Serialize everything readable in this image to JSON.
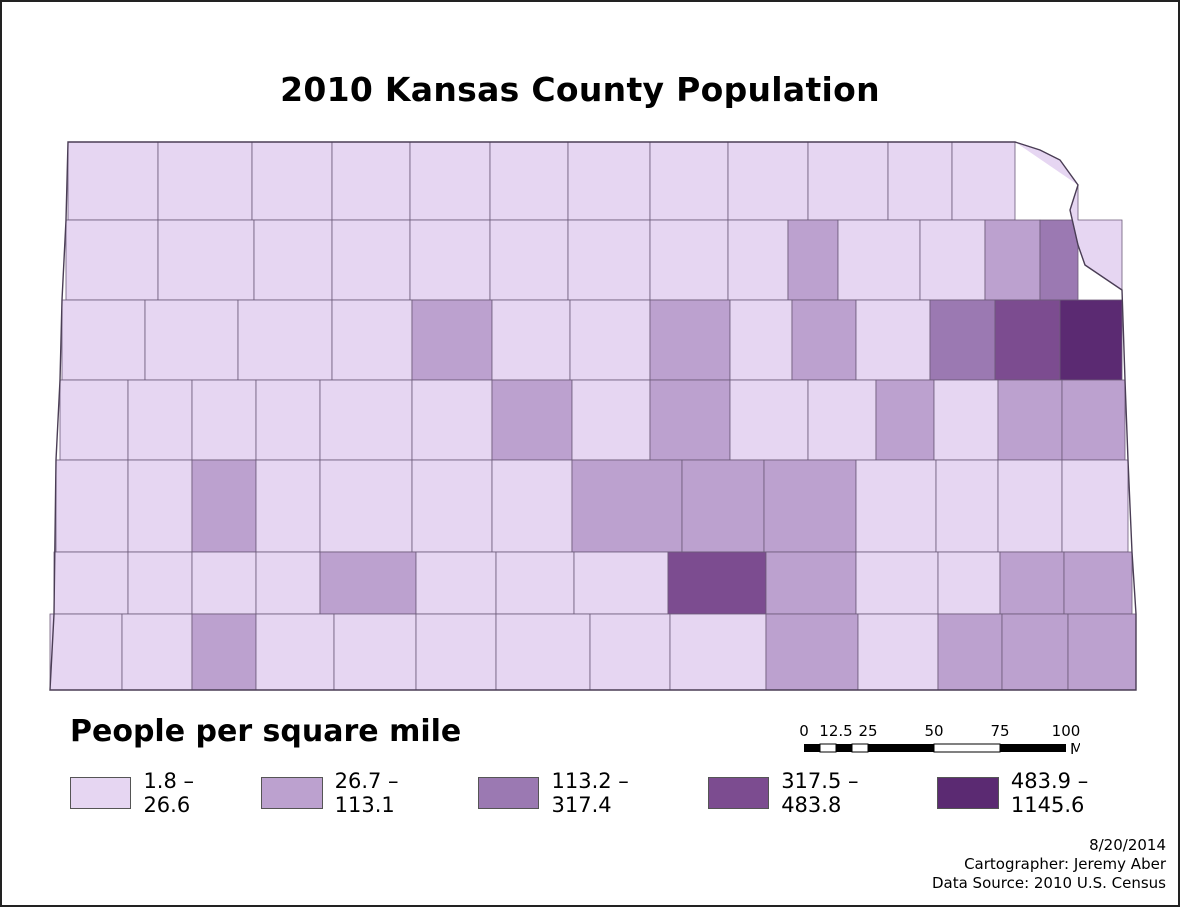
{
  "title": "2010 Kansas County Population",
  "legend": {
    "title": "People per square mile",
    "classes": [
      {
        "label": "1.8 – 26.6",
        "color": "#e6d6f2"
      },
      {
        "label": "26.7 – 113.1",
        "color": "#bca1cf"
      },
      {
        "label": "113.2 – 317.4",
        "color": "#9b79b2"
      },
      {
        "label": "317.5 – 483.8",
        "color": "#7c4c90"
      },
      {
        "label": "483.9 – 1145.6",
        "color": "#5b2a72"
      }
    ]
  },
  "scale_bar": {
    "ticks": [
      "0",
      "12.5",
      "25",
      "50",
      "75",
      "100"
    ],
    "unit": "Miles"
  },
  "credits": {
    "date": "8/20/2014",
    "cartographer": "Cartographer: Jeremy Aber",
    "source": "Data Source: 2010 U.S. Census"
  },
  "map_colors": {
    "border": "#6b5a78",
    "outline": "#4a3d55"
  }
}
